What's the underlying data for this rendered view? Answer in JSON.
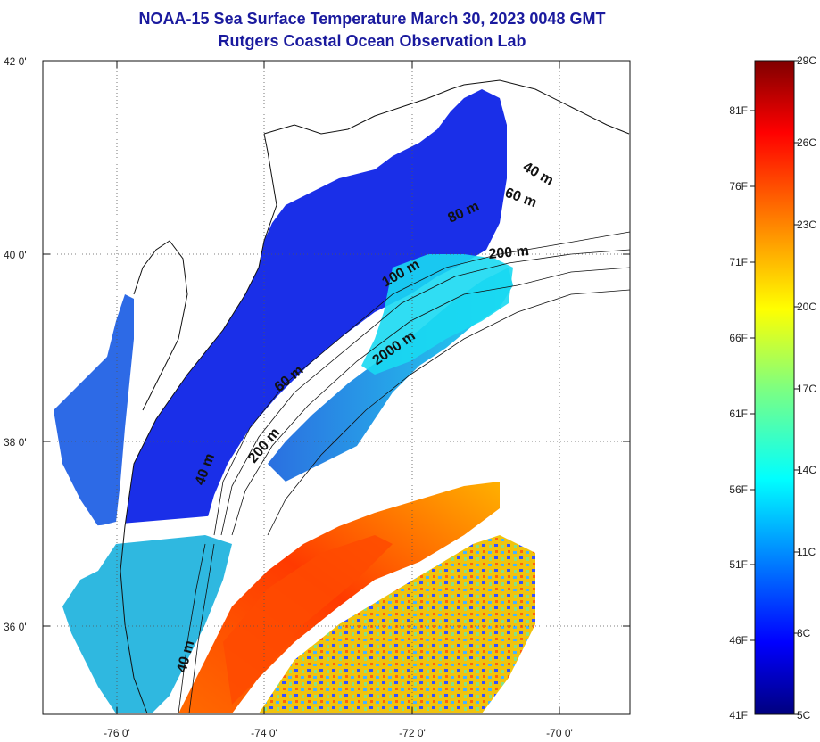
{
  "title": {
    "line1": "NOAA-15 Sea Surface Temperature March 30, 2023 0048 GMT",
    "line2": "Rutgers Coastal Ocean Observation Lab"
  },
  "map": {
    "lat_labels": [
      "42 0'",
      "40 0'",
      "38 0'",
      "36 0'"
    ],
    "lon_labels": [
      "-76 0'",
      "-74 0'",
      "-72 0'",
      "-70 0'"
    ],
    "grid": "dotted",
    "isobath_labels": [
      "40 m",
      "60 m",
      "80 m",
      "100 m",
      "200 m",
      "2000 m",
      "60 m",
      "200 m",
      "40 m",
      "40 m"
    ]
  },
  "colorbar": {
    "fahrenheit_labels": [
      "81F",
      "76F",
      "71F",
      "66F",
      "61F",
      "56F",
      "51F",
      "46F",
      "41F"
    ],
    "celsius_labels": [
      "29C",
      "26C",
      "23C",
      "20C",
      "17C",
      "14C",
      "11C",
      "8C",
      "5C"
    ],
    "colormap": "jet"
  }
}
